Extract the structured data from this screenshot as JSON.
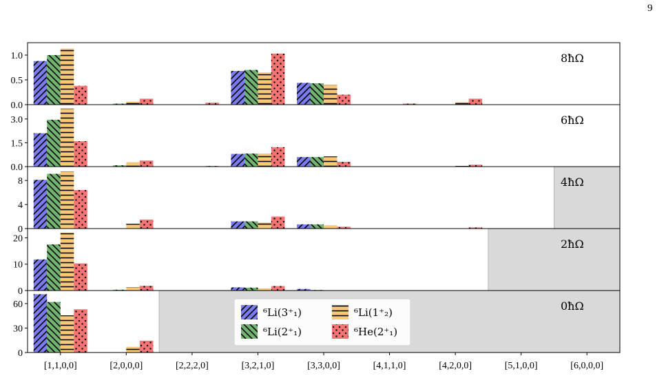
{
  "page": {
    "number": "9"
  },
  "chart_data": {
    "type": "bar",
    "categories": [
      "[1,1,0,0]",
      "[2,0,0,0]",
      "[2,2,2,0]",
      "[3,2,1,0]",
      "[3,3,0,0]",
      "[4,1,1,0]",
      "[4,2,0,0]",
      "[5,1,0,0]",
      "[6,0,0,0]"
    ],
    "legend": {
      "placement": "center-bottom",
      "entries": [
        {
          "key": "li6_3",
          "label": "⁶Li(3⁺₁)"
        },
        {
          "key": "li6_1",
          "label": "⁶Li(1⁺₂)"
        },
        {
          "key": "li6_2",
          "label": "⁶Li(2⁺₁)"
        },
        {
          "key": "he6_2",
          "label": "⁶He(2⁺₁)"
        }
      ]
    },
    "series_styles": [
      {
        "key": "li6_3",
        "color": "#7b7bf0",
        "pattern": "diagonal-forward"
      },
      {
        "key": "li6_2",
        "color": "#6fb56f",
        "pattern": "diagonal-back"
      },
      {
        "key": "li6_1",
        "color": "#f7c87a",
        "pattern": "horizontal"
      },
      {
        "key": "he6_2",
        "color": "#f47474",
        "pattern": "dots"
      }
    ],
    "grey_shade_color": "#d9d9d9",
    "panels": [
      {
        "label": "8ħΩ",
        "ylim": [
          0,
          1.25
        ],
        "yticks": [
          0.0,
          0.5,
          1.0
        ],
        "yticklabels": [
          "0.0",
          "0.5",
          "1.0"
        ],
        "forbidden_from_category": null,
        "values": {
          "li6_3": [
            0.88,
            0.0,
            0.0,
            0.68,
            0.44,
            0.0,
            0.0,
            0.0,
            0.0
          ],
          "li6_2": [
            1.0,
            0.02,
            0.0,
            0.7,
            0.43,
            0.0,
            0.0,
            0.0,
            0.0
          ],
          "li6_1": [
            1.13,
            0.06,
            0.0,
            0.65,
            0.4,
            0.005,
            0.05,
            0.0,
            0.0
          ],
          "he6_2": [
            0.38,
            0.12,
            0.04,
            1.03,
            0.2,
            0.02,
            0.12,
            0.0,
            0.0
          ]
        }
      },
      {
        "label": "6ħΩ",
        "ylim": [
          0,
          3.9
        ],
        "yticks": [
          0.0,
          1.5,
          3.0
        ],
        "yticklabels": [
          "0.0",
          "1.5",
          "3.0"
        ],
        "forbidden_from_category": null,
        "values": {
          "li6_3": [
            2.1,
            0.0,
            0.0,
            0.8,
            0.6,
            0.0,
            0.0,
            0.0,
            0.0
          ],
          "li6_2": [
            2.95,
            0.08,
            0.0,
            0.82,
            0.6,
            0.0,
            0.0,
            0.0,
            0.0
          ],
          "li6_1": [
            3.65,
            0.28,
            0.0,
            0.82,
            0.64,
            0.0,
            0.04,
            0.0,
            0.0
          ],
          "he6_2": [
            1.6,
            0.38,
            0.04,
            1.22,
            0.3,
            0.02,
            0.12,
            0.0,
            0.0
          ]
        }
      },
      {
        "label": "4ħΩ",
        "ylim": [
          0,
          10.3
        ],
        "yticks": [
          0,
          4,
          8
        ],
        "yticklabels": [
          "0",
          "4",
          "8"
        ],
        "forbidden_from_category": 8,
        "values": {
          "li6_3": [
            8.1,
            0.0,
            0.0,
            1.2,
            0.7,
            0.0,
            0.0,
            0.0,
            0.0
          ],
          "li6_2": [
            9.1,
            0.05,
            0.0,
            1.2,
            0.7,
            0.0,
            0.0,
            0.0,
            0.0
          ],
          "li6_1": [
            9.5,
            0.8,
            0.0,
            1.0,
            0.55,
            0.0,
            0.05,
            0.0,
            0.0
          ],
          "he6_2": [
            6.4,
            1.5,
            0.02,
            2.0,
            0.3,
            0.0,
            0.18,
            0.0,
            0.0
          ]
        }
      },
      {
        "label": "2ħΩ",
        "ylim": [
          0,
          23.5
        ],
        "yticks": [
          0,
          10,
          20
        ],
        "yticklabels": [
          "0",
          "10",
          "20"
        ],
        "forbidden_from_category": 7,
        "values": {
          "li6_3": [
            11.8,
            0.0,
            0.0,
            1.2,
            0.6,
            0.0,
            0.0,
            0.0,
            0.0
          ],
          "li6_2": [
            17.5,
            0.3,
            0.0,
            1.1,
            0.2,
            0.0,
            0.0,
            0.0,
            0.0
          ],
          "li6_1": [
            22.0,
            1.3,
            0.0,
            0.8,
            0.1,
            0.0,
            0.0,
            0.0,
            0.0
          ],
          "he6_2": [
            10.3,
            1.8,
            0.0,
            1.7,
            0.05,
            0.0,
            0.0,
            0.0,
            0.0
          ]
        }
      },
      {
        "label": "0ħΩ",
        "ylim": [
          0,
          76
        ],
        "yticks": [
          0,
          30,
          60
        ],
        "yticklabels": [
          "0",
          "30",
          "60"
        ],
        "forbidden_from_category": 2,
        "values": {
          "li6_3": [
            71.5,
            0.0,
            0.0,
            0.0,
            0.0,
            0.0,
            0.0,
            0.0,
            0.0
          ],
          "li6_2": [
            62.0,
            0.0,
            0.0,
            0.0,
            0.0,
            0.0,
            0.0,
            0.0,
            0.0
          ],
          "li6_1": [
            45.5,
            7.0,
            0.0,
            0.0,
            0.0,
            0.0,
            0.0,
            0.0,
            0.0
          ],
          "he6_2": [
            53.0,
            14.5,
            0.0,
            0.0,
            0.0,
            0.0,
            0.0,
            0.0,
            0.0
          ]
        }
      }
    ]
  }
}
